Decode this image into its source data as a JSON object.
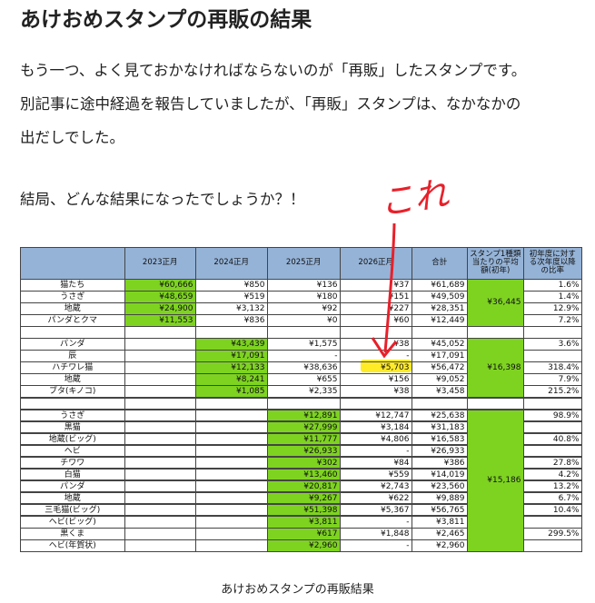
{
  "header": {
    "title": "あけおめスタンプの再販の結果"
  },
  "paragraphs": [
    "もう一つ、よく見ておかなければならないのが「再販」したスタンプです。",
    "別記事に途中経過を報告していましたが、「再販」スタンプは、なかなかの",
    "出だしでした。",
    "結局、どんな結果になったでしょうか？！"
  ],
  "annotation": "これ",
  "table": {
    "header": [
      "2023正月",
      "2024正月",
      "2025正月",
      "2026正月",
      "合計",
      "スタンプ1種類当たりの平均額(初年)",
      "初年度に対する次年度以降の比率"
    ],
    "groups": [
      {
        "average": "¥36,445",
        "rows": [
          [
            "猫たち",
            "¥60,666",
            "¥850",
            "¥136",
            "¥37",
            "¥61,689",
            "1.6%"
          ],
          [
            "うさぎ",
            "¥48,659",
            "¥519",
            "¥180",
            "¥151",
            "¥49,509",
            "1.4%"
          ],
          [
            "地蔵",
            "¥24,900",
            "¥3,132",
            "¥92",
            "¥227",
            "¥28,351",
            "12.9%"
          ],
          [
            "パンダとクマ",
            "¥11,553",
            "¥836",
            "¥0",
            "¥60",
            "¥12,449",
            "7.2%"
          ]
        ]
      },
      {
        "average": "¥16,398",
        "rows": [
          [
            "パンダ",
            null,
            "¥43,439",
            "¥1,575",
            "¥38",
            "¥45,052",
            "3.6%"
          ],
          [
            "辰",
            null,
            "¥17,091",
            "-",
            "-",
            "¥17,091",
            null
          ],
          [
            "ハチワレ猫",
            null,
            "¥12,133",
            "¥38,636",
            "¥5,703",
            "¥56,472",
            "318.4%"
          ],
          [
            "地蔵",
            null,
            "¥8,241",
            "¥655",
            "¥156",
            "¥9,052",
            "7.9%"
          ],
          [
            "ブタ(キノコ)",
            null,
            "¥1,085",
            "¥2,335",
            "¥38",
            "¥3,458",
            "215.2%"
          ]
        ]
      },
      {
        "average": "¥15,186",
        "rows": [
          [
            "うさぎ",
            null,
            null,
            "¥12,891",
            "¥12,747",
            "¥25,638",
            "98.9%"
          ],
          [
            "黒猫",
            null,
            null,
            "¥27,999",
            "¥3,184",
            "¥31,183",
            null
          ],
          [
            "地蔵(ビッグ)",
            null,
            null,
            "¥11,777",
            "¥4,806",
            "¥16,583",
            "40.8%"
          ],
          [
            "ヘビ",
            null,
            null,
            "¥26,933",
            "-",
            "¥26,933",
            null
          ],
          [
            "チワワ",
            null,
            null,
            "¥302",
            "¥84",
            "¥386",
            "27.8%"
          ],
          [
            "白猫",
            null,
            null,
            "¥13,460",
            "¥559",
            "¥14,019",
            "4.2%"
          ],
          [
            "パンダ",
            null,
            null,
            "¥20,817",
            "¥2,743",
            "¥23,560",
            "13.2%"
          ],
          [
            "地蔵",
            null,
            null,
            "¥9,267",
            "¥622",
            "¥9,889",
            "6.7%"
          ],
          [
            "三毛猫(ビッグ)",
            null,
            null,
            "¥51,398",
            "¥5,367",
            "¥56,765",
            "10.4%"
          ],
          [
            "ヘビ(ビッグ)",
            null,
            null,
            "¥3,811",
            "-",
            "¥3,811",
            null
          ],
          [
            "黒くま",
            null,
            null,
            "¥617",
            "¥1,848",
            "¥2,465",
            "299.5%"
          ],
          [
            "ヘビ(年賀状)",
            null,
            null,
            "¥2,960",
            "-",
            "¥2,960",
            null
          ]
        ]
      }
    ]
  },
  "caption": "あけおめスタンプの再販結果"
}
